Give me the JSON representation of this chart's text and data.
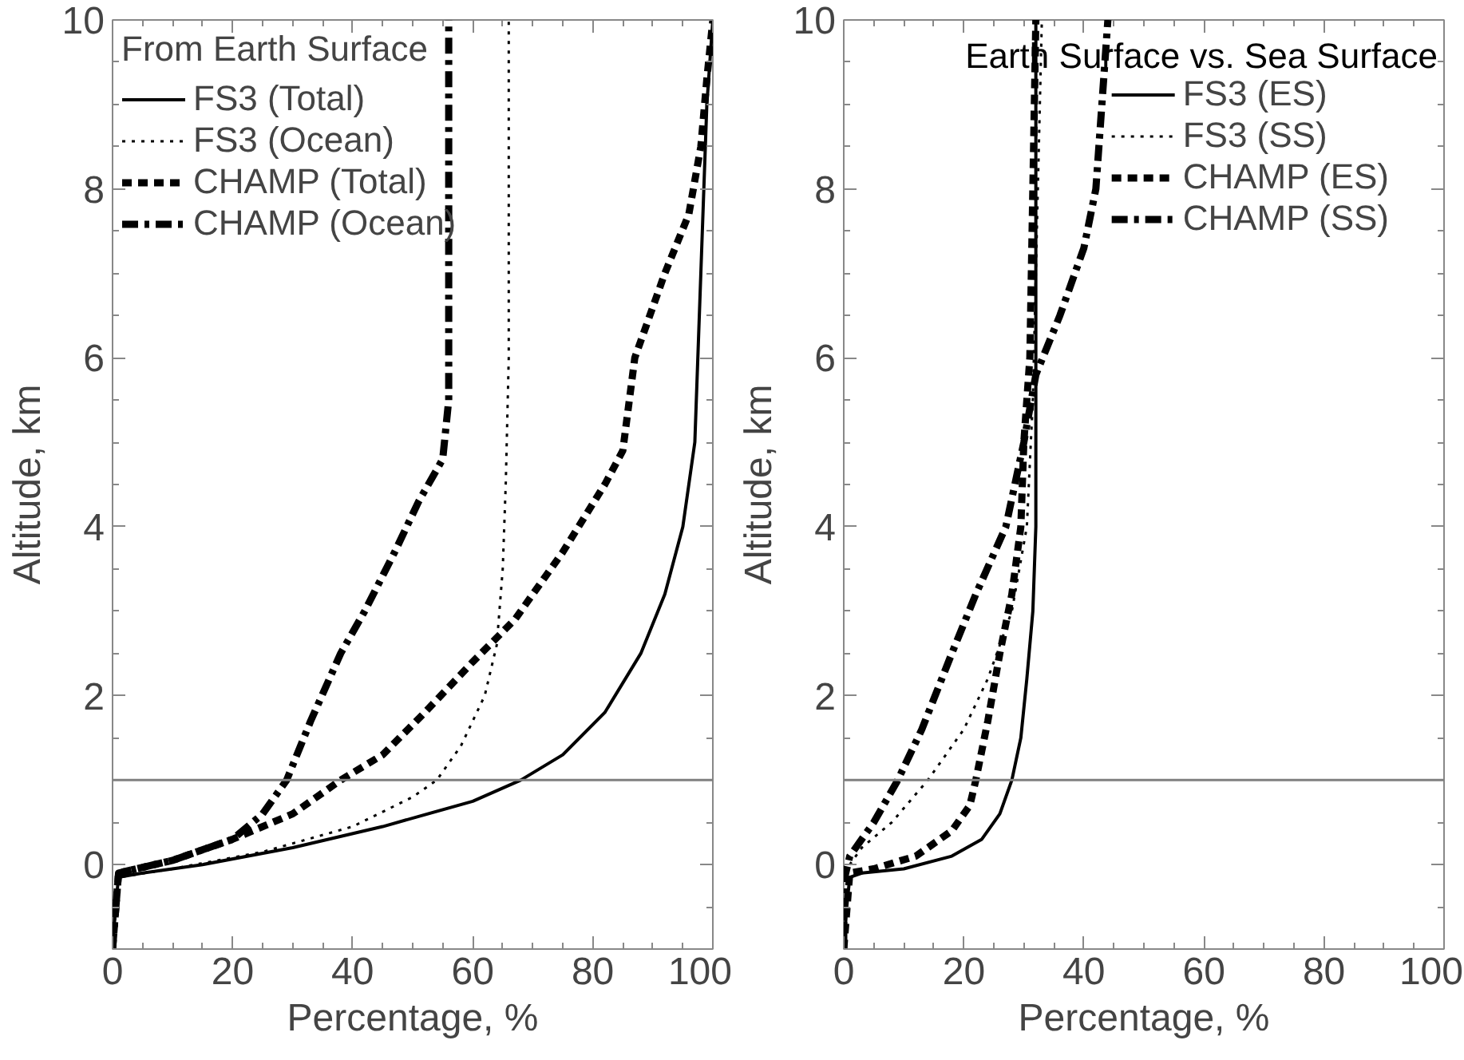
{
  "chart_data": [
    {
      "type": "line",
      "xlabel": "Percentage, %",
      "ylabel": "Altitude, km",
      "legend_title": "From Earth Surface",
      "legend": "top left",
      "grid": false,
      "xlim": [
        0,
        100
      ],
      "xticks": [
        0,
        20,
        40,
        60,
        80,
        100
      ],
      "ylim": [
        -1,
        10
      ],
      "yticks": [
        0,
        2,
        4,
        6,
        8,
        10
      ],
      "ref_lines": [
        {
          "axis": "y",
          "value": 1,
          "color": "#808080"
        }
      ],
      "series": [
        {
          "name": "FS3 (Total)",
          "color": "#000000",
          "line_style": "solid",
          "x": [
            0,
            0.5,
            1,
            5,
            15,
            30,
            45,
            60,
            68,
            75,
            82,
            88,
            92,
            95,
            97,
            98,
            99,
            100
          ],
          "values": [
            -1,
            -0.5,
            -0.15,
            -0.1,
            0,
            0.2,
            0.45,
            0.75,
            1.0,
            1.3,
            1.8,
            2.5,
            3.2,
            4,
            5,
            7,
            9,
            10
          ]
        },
        {
          "name": "FS3 (Ocean)",
          "color": "#000000",
          "line_style": "dotted",
          "x": [
            0,
            1,
            10,
            25,
            40,
            50,
            54,
            58,
            62,
            64,
            65,
            65.5,
            66,
            66
          ],
          "values": [
            -1,
            -0.15,
            -0.05,
            0.15,
            0.45,
            0.8,
            1.0,
            1.4,
            2.0,
            2.6,
            3.5,
            4.5,
            6,
            10
          ]
        },
        {
          "name": "CHAMP (Total)",
          "color": "#000000",
          "line_style": "dashed",
          "x": [
            0,
            1,
            10,
            20,
            30,
            38,
            45,
            52,
            60,
            67,
            75,
            82,
            85,
            87,
            92,
            96,
            98,
            99,
            100
          ],
          "values": [
            -1,
            -0.1,
            0.05,
            0.3,
            0.6,
            1.0,
            1.3,
            1.8,
            2.4,
            2.9,
            3.7,
            4.5,
            4.9,
            6,
            7,
            7.7,
            8.5,
            9.3,
            10
          ]
        },
        {
          "name": "CHAMP (Ocean)",
          "color": "#000000",
          "line_style": "dashdot",
          "x": [
            0,
            1,
            10,
            20,
            25,
            29,
            33,
            38,
            42,
            47,
            51,
            55,
            56,
            56
          ],
          "values": [
            -1,
            -0.1,
            0.05,
            0.3,
            0.6,
            1.0,
            1.7,
            2.5,
            3.0,
            3.7,
            4.3,
            4.8,
            5.5,
            10
          ]
        }
      ]
    },
    {
      "type": "line",
      "xlabel": "Percentage, %",
      "ylabel": "Altitude, km",
      "legend_title": "Earth Surface vs. Sea Surface",
      "legend": "top right",
      "grid": false,
      "xlim": [
        0,
        100
      ],
      "xticks": [
        0,
        20,
        40,
        60,
        80,
        100
      ],
      "ylim": [
        -1,
        10
      ],
      "yticks": [
        0,
        2,
        4,
        6,
        8,
        10
      ],
      "ref_lines": [
        {
          "axis": "y",
          "value": 1,
          "color": "#808080"
        }
      ],
      "series": [
        {
          "name": "FS3 (ES)",
          "color": "#000000",
          "line_style": "solid",
          "x": [
            0,
            0.5,
            1,
            3,
            10,
            18,
            23,
            26,
            28,
            29.5,
            30.5,
            31.5,
            32,
            32,
            32
          ],
          "values": [
            -1,
            -0.5,
            -0.15,
            -0.1,
            -0.05,
            0.1,
            0.3,
            0.6,
            1.0,
            1.5,
            2.2,
            3,
            4,
            6,
            10
          ]
        },
        {
          "name": "FS3 (SS)",
          "color": "#000000",
          "line_style": "dotted",
          "x": [
            0,
            0,
            3,
            8,
            14,
            20,
            24,
            28,
            30.5,
            31.5,
            32,
            33
          ],
          "values": [
            -1,
            -0.1,
            0.2,
            0.5,
            1.0,
            1.6,
            2.2,
            3,
            4,
            5.5,
            7,
            10
          ]
        },
        {
          "name": "CHAMP (ES)",
          "color": "#000000",
          "line_style": "dashed",
          "x": [
            0,
            1,
            5,
            12,
            18,
            21,
            22,
            24,
            26,
            28,
            29.5,
            30,
            31,
            31.5,
            32
          ],
          "values": [
            -1,
            -0.1,
            -0.05,
            0.1,
            0.4,
            0.7,
            1.0,
            1.7,
            2.5,
            3.2,
            4,
            5,
            6,
            8,
            10
          ]
        },
        {
          "name": "CHAMP (SS)",
          "color": "#000000",
          "line_style": "dashdot",
          "x": [
            0,
            0,
            1,
            5,
            9,
            13,
            18,
            22,
            27,
            30,
            32,
            36,
            40,
            42,
            43,
            44
          ],
          "values": [
            -1,
            -0.2,
            0.1,
            0.5,
            1.0,
            1.6,
            2.5,
            3.2,
            4,
            5,
            5.8,
            6.5,
            7.3,
            8,
            9,
            10
          ]
        }
      ]
    }
  ]
}
